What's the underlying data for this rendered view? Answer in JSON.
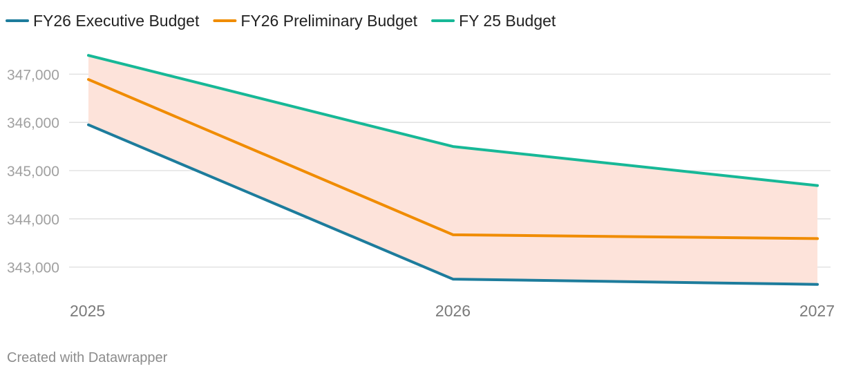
{
  "chart_data": {
    "type": "line",
    "x": [
      "2025",
      "2026",
      "2027"
    ],
    "series": [
      {
        "name": "FY26 Executive Budget",
        "values": [
          345950,
          342750,
          342640
        ],
        "color": "#1d7c9c"
      },
      {
        "name": "FY26 Preliminary Budget",
        "values": [
          346890,
          343670,
          343590
        ],
        "color": "#f08c00"
      },
      {
        "name": "FY 25 Budget",
        "values": [
          347390,
          345500,
          344690
        ],
        "color": "#17b897"
      }
    ],
    "range_fill": {
      "between": [
        "FY26 Executive Budget",
        "FY 25 Budget"
      ],
      "color": "#fde3da"
    },
    "y_ticks": [
      347000,
      346000,
      345000,
      344000,
      343000
    ],
    "y_tick_labels": [
      "347,000",
      "346,000",
      "345,000",
      "344,000",
      "343,000"
    ],
    "ylim": [
      342350,
      347750
    ],
    "grid": true,
    "legend": "top-left",
    "credit": "Created with Datawrapper"
  }
}
